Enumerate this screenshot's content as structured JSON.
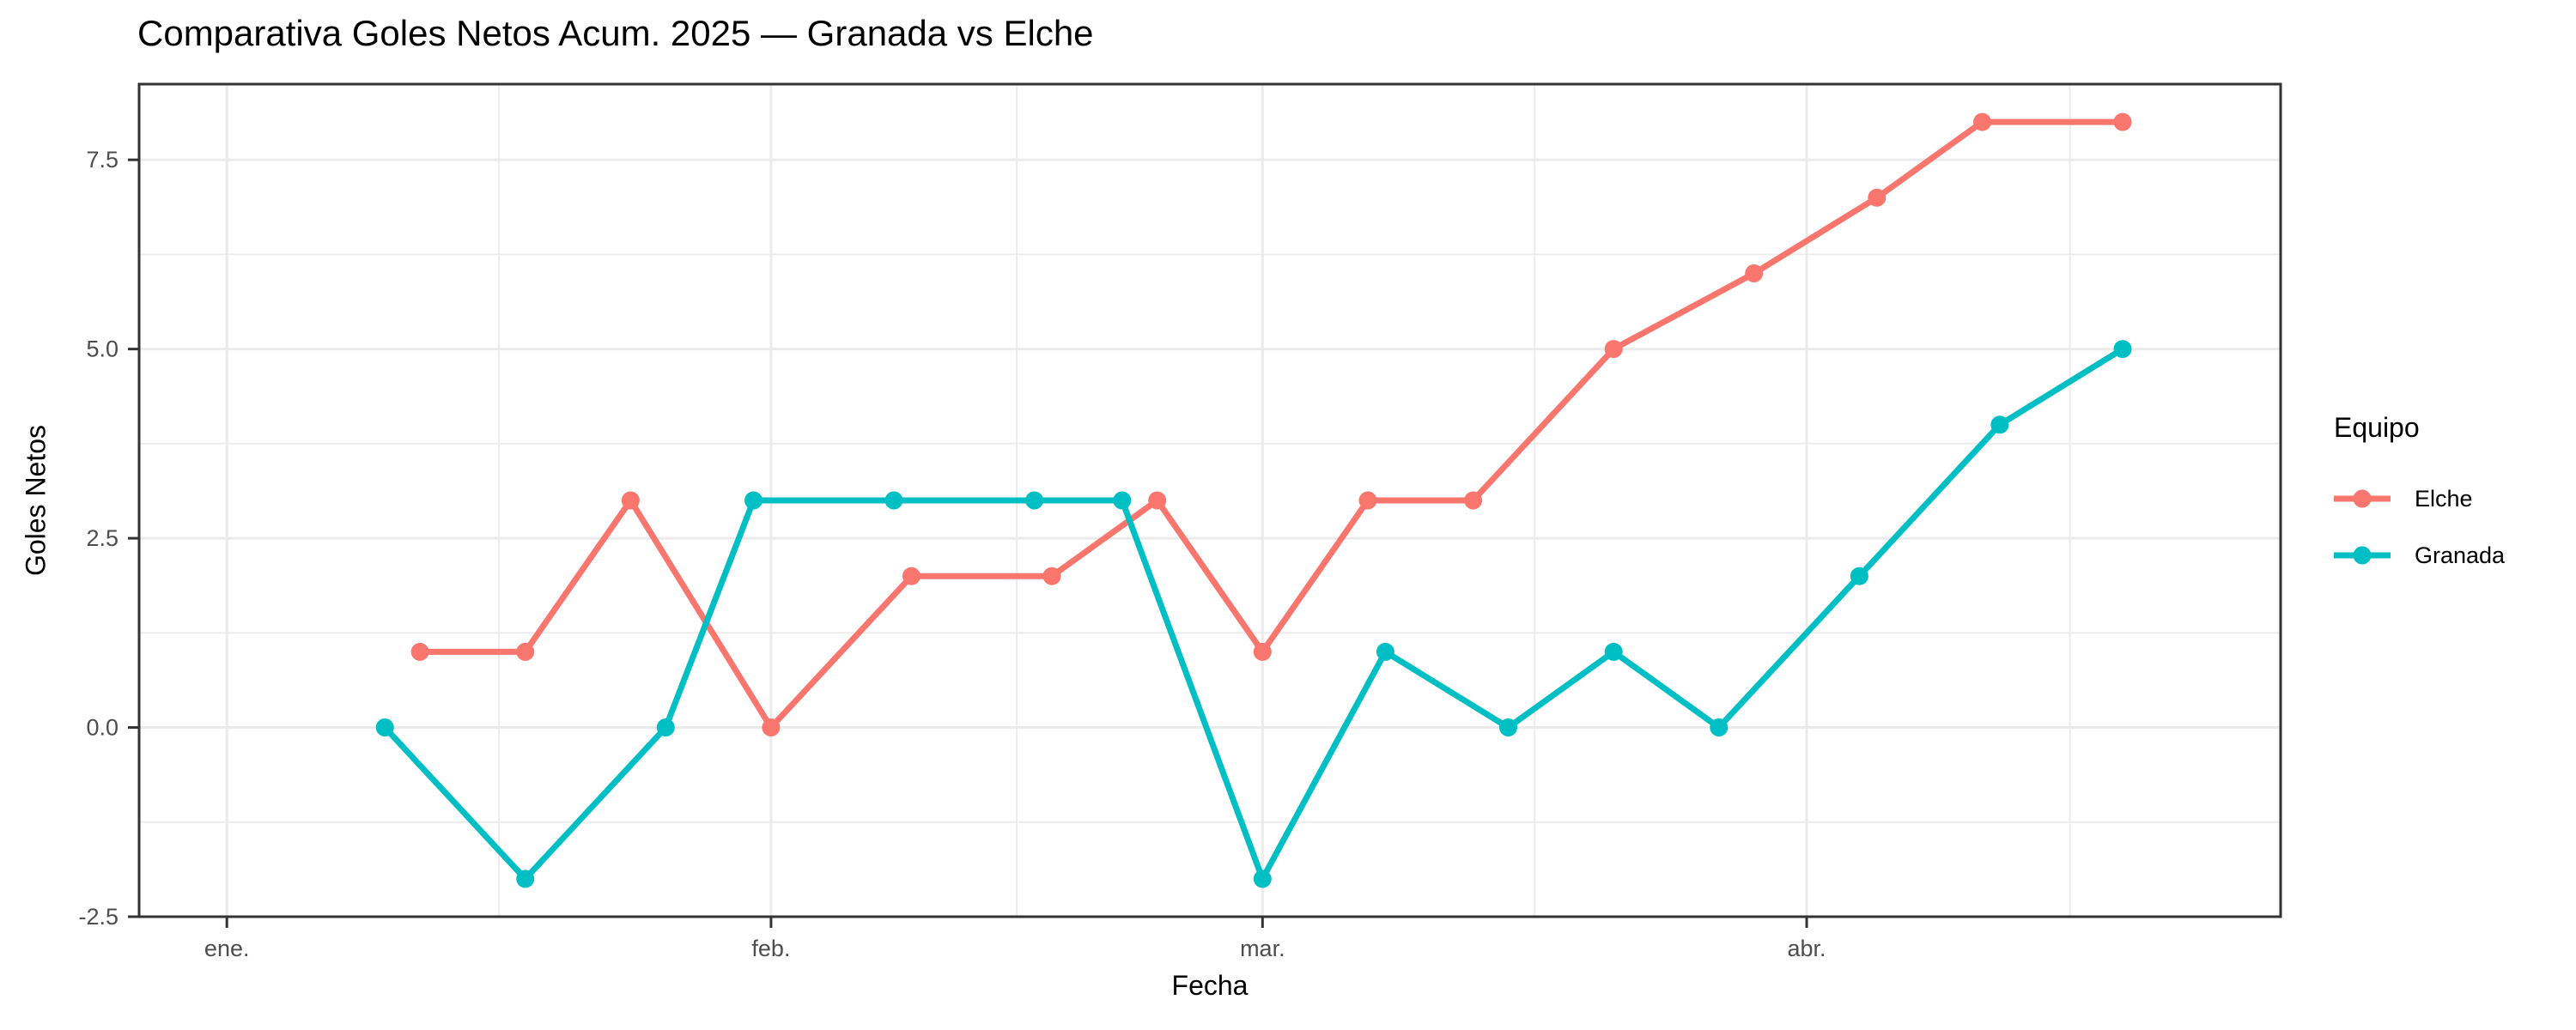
{
  "chart_data": {
    "type": "line",
    "title": "Comparativa Goles Netos Acum. 2025 — Granada vs Elche",
    "xlabel": "Fecha",
    "ylabel": "Goles Netos",
    "legend": {
      "title": "Equipo",
      "position": "right",
      "entries": [
        "Elche",
        "Granada"
      ]
    },
    "x_axis": {
      "domain": [
        "2024-12-27",
        "2025-04-28"
      ],
      "ticks": [
        {
          "date": "2025-01-01",
          "label": "ene."
        },
        {
          "date": "2025-02-01",
          "label": "feb."
        },
        {
          "date": "2025-03-01",
          "label": "mar."
        },
        {
          "date": "2025-04-01",
          "label": "abr."
        }
      ],
      "minor_dates": [
        "2025-01-16T12:00:00",
        "2025-02-15T00:00:00",
        "2025-03-16T12:00:00",
        "2025-04-16T00:00:00"
      ]
    },
    "y_axis": {
      "domain": [
        -2.5,
        8.5
      ],
      "ticks": [
        {
          "value": -2.5,
          "label": "-2.5"
        },
        {
          "value": 0.0,
          "label": "0.0"
        },
        {
          "value": 2.5,
          "label": "2.5"
        },
        {
          "value": 5.0,
          "label": "5.0"
        },
        {
          "value": 7.5,
          "label": "7.5"
        }
      ],
      "minor_values": [
        -1.25,
        1.25,
        3.75,
        6.25
      ]
    },
    "grid": true,
    "series": [
      {
        "name": "Elche",
        "color": "#F8766D",
        "points": [
          {
            "date": "2025-01-12",
            "value": 1
          },
          {
            "date": "2025-01-18",
            "value": 1
          },
          {
            "date": "2025-01-24",
            "value": 3
          },
          {
            "date": "2025-02-01",
            "value": 0
          },
          {
            "date": "2025-02-09",
            "value": 2
          },
          {
            "date": "2025-02-17",
            "value": 2
          },
          {
            "date": "2025-02-23",
            "value": 3
          },
          {
            "date": "2025-03-01",
            "value": 1
          },
          {
            "date": "2025-03-07",
            "value": 3
          },
          {
            "date": "2025-03-13",
            "value": 3
          },
          {
            "date": "2025-03-21",
            "value": 5
          },
          {
            "date": "2025-03-29",
            "value": 6
          },
          {
            "date": "2025-04-05",
            "value": 7
          },
          {
            "date": "2025-04-11",
            "value": 8
          },
          {
            "date": "2025-04-19",
            "value": 8
          }
        ]
      },
      {
        "name": "Granada",
        "color": "#00BFC4",
        "points": [
          {
            "date": "2025-01-10",
            "value": 0
          },
          {
            "date": "2025-01-18",
            "value": -2
          },
          {
            "date": "2025-01-26",
            "value": 0
          },
          {
            "date": "2025-01-31",
            "value": 3
          },
          {
            "date": "2025-02-08",
            "value": 3
          },
          {
            "date": "2025-02-16",
            "value": 3
          },
          {
            "date": "2025-02-21",
            "value": 3
          },
          {
            "date": "2025-03-01",
            "value": -2
          },
          {
            "date": "2025-03-08",
            "value": 1
          },
          {
            "date": "2025-03-15",
            "value": 0
          },
          {
            "date": "2025-03-21",
            "value": 1
          },
          {
            "date": "2025-03-27",
            "value": 0
          },
          {
            "date": "2025-04-04",
            "value": 2
          },
          {
            "date": "2025-04-12",
            "value": 4
          },
          {
            "date": "2025-04-19",
            "value": 5
          }
        ]
      }
    ],
    "style": {
      "background": "#FFFFFF",
      "grid_color": "#EBEBEB",
      "panel_border_color": "#333333",
      "tick_color": "#333333",
      "axis_text_color": "#4D4D4D"
    }
  }
}
